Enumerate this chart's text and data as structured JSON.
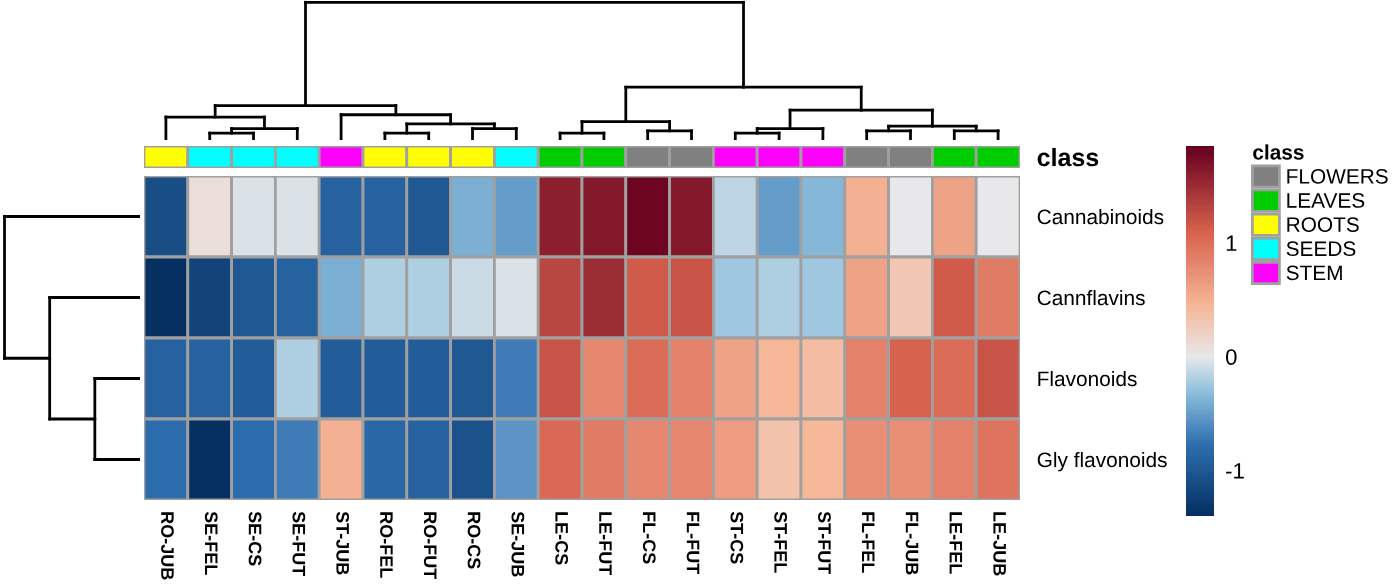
{
  "chart_data": [
    {
      "type": "other",
      "y2_categories": [
        "class"
      ],
      "colors": [
        "#ffff00",
        "#00ffff",
        "#00ffff",
        "#00ffff",
        "#ff00ff",
        "#ffff00",
        "#ffff00",
        "#ffff00",
        "#00ffff",
        "#00cc00",
        "#00cc00",
        "#808080",
        "#808080",
        "#ff00ff",
        "#ff00ff",
        "#ff00ff",
        "#808080",
        "#808080",
        "#00cc00",
        "#00cc00"
      ]
    },
    {
      "type": "other",
      "legend_title": "class",
      "categories": [
        "FLOWERS",
        "LEAVES",
        "ROOTS",
        "SEEDS",
        "STEM"
      ],
      "colors": [
        "#808080",
        "#00cc00",
        "#ffff00",
        "#00ffff",
        "#ff00ff"
      ]
    },
    {
      "type": "heatmap",
      "categories": [
        "RO-JUB",
        "SE-FEL",
        "SE-CS",
        "SE-FUT",
        "ST-JUB",
        "RO-FEL",
        "RO-FUT",
        "RO-CS",
        "SE-JUB",
        "LE-CS",
        "LE-FUT",
        "FL-CS",
        "FL-FUT",
        "ST-CS",
        "ST-FEL",
        "ST-FUT",
        "FL-FEL",
        "FL-JUB",
        "LE-FEL",
        "LE-JUB"
      ],
      "y_categories": [
        "Cannabinoids",
        "Cannflavins",
        "Flavonoids",
        "Gly flavonoids"
      ],
      "cells": [
        [
          -1.1,
          0.1,
          -0.05,
          -0.05,
          -0.9,
          -0.9,
          -1.0,
          -0.4,
          -0.5,
          1.6,
          1.65,
          1.8,
          1.65,
          -0.15,
          -0.5,
          -0.35,
          0.5,
          0.0,
          0.6,
          0.0
        ],
        [
          -1.4,
          -1.2,
          -1.0,
          -0.9,
          -0.4,
          -0.2,
          -0.2,
          -0.1,
          -0.05,
          1.3,
          1.5,
          1.15,
          1.2,
          -0.25,
          -0.2,
          -0.25,
          0.6,
          0.3,
          1.15,
          0.9
        ],
        [
          -0.9,
          -0.9,
          -0.95,
          -0.2,
          -0.95,
          -0.95,
          -0.95,
          -1.0,
          -0.7,
          1.2,
          0.8,
          1.0,
          0.85,
          0.6,
          0.45,
          0.4,
          0.85,
          1.1,
          1.0,
          1.2
        ],
        [
          -0.8,
          -1.4,
          -0.8,
          -0.7,
          0.5,
          -0.85,
          -0.9,
          -1.05,
          -0.55,
          1.05,
          0.9,
          0.8,
          0.8,
          0.65,
          0.35,
          0.45,
          0.75,
          0.75,
          0.85,
          0.95
        ]
      ],
      "clim": [
        -1.4,
        1.85
      ],
      "cticks": [
        -1,
        0,
        1
      ]
    }
  ]
}
